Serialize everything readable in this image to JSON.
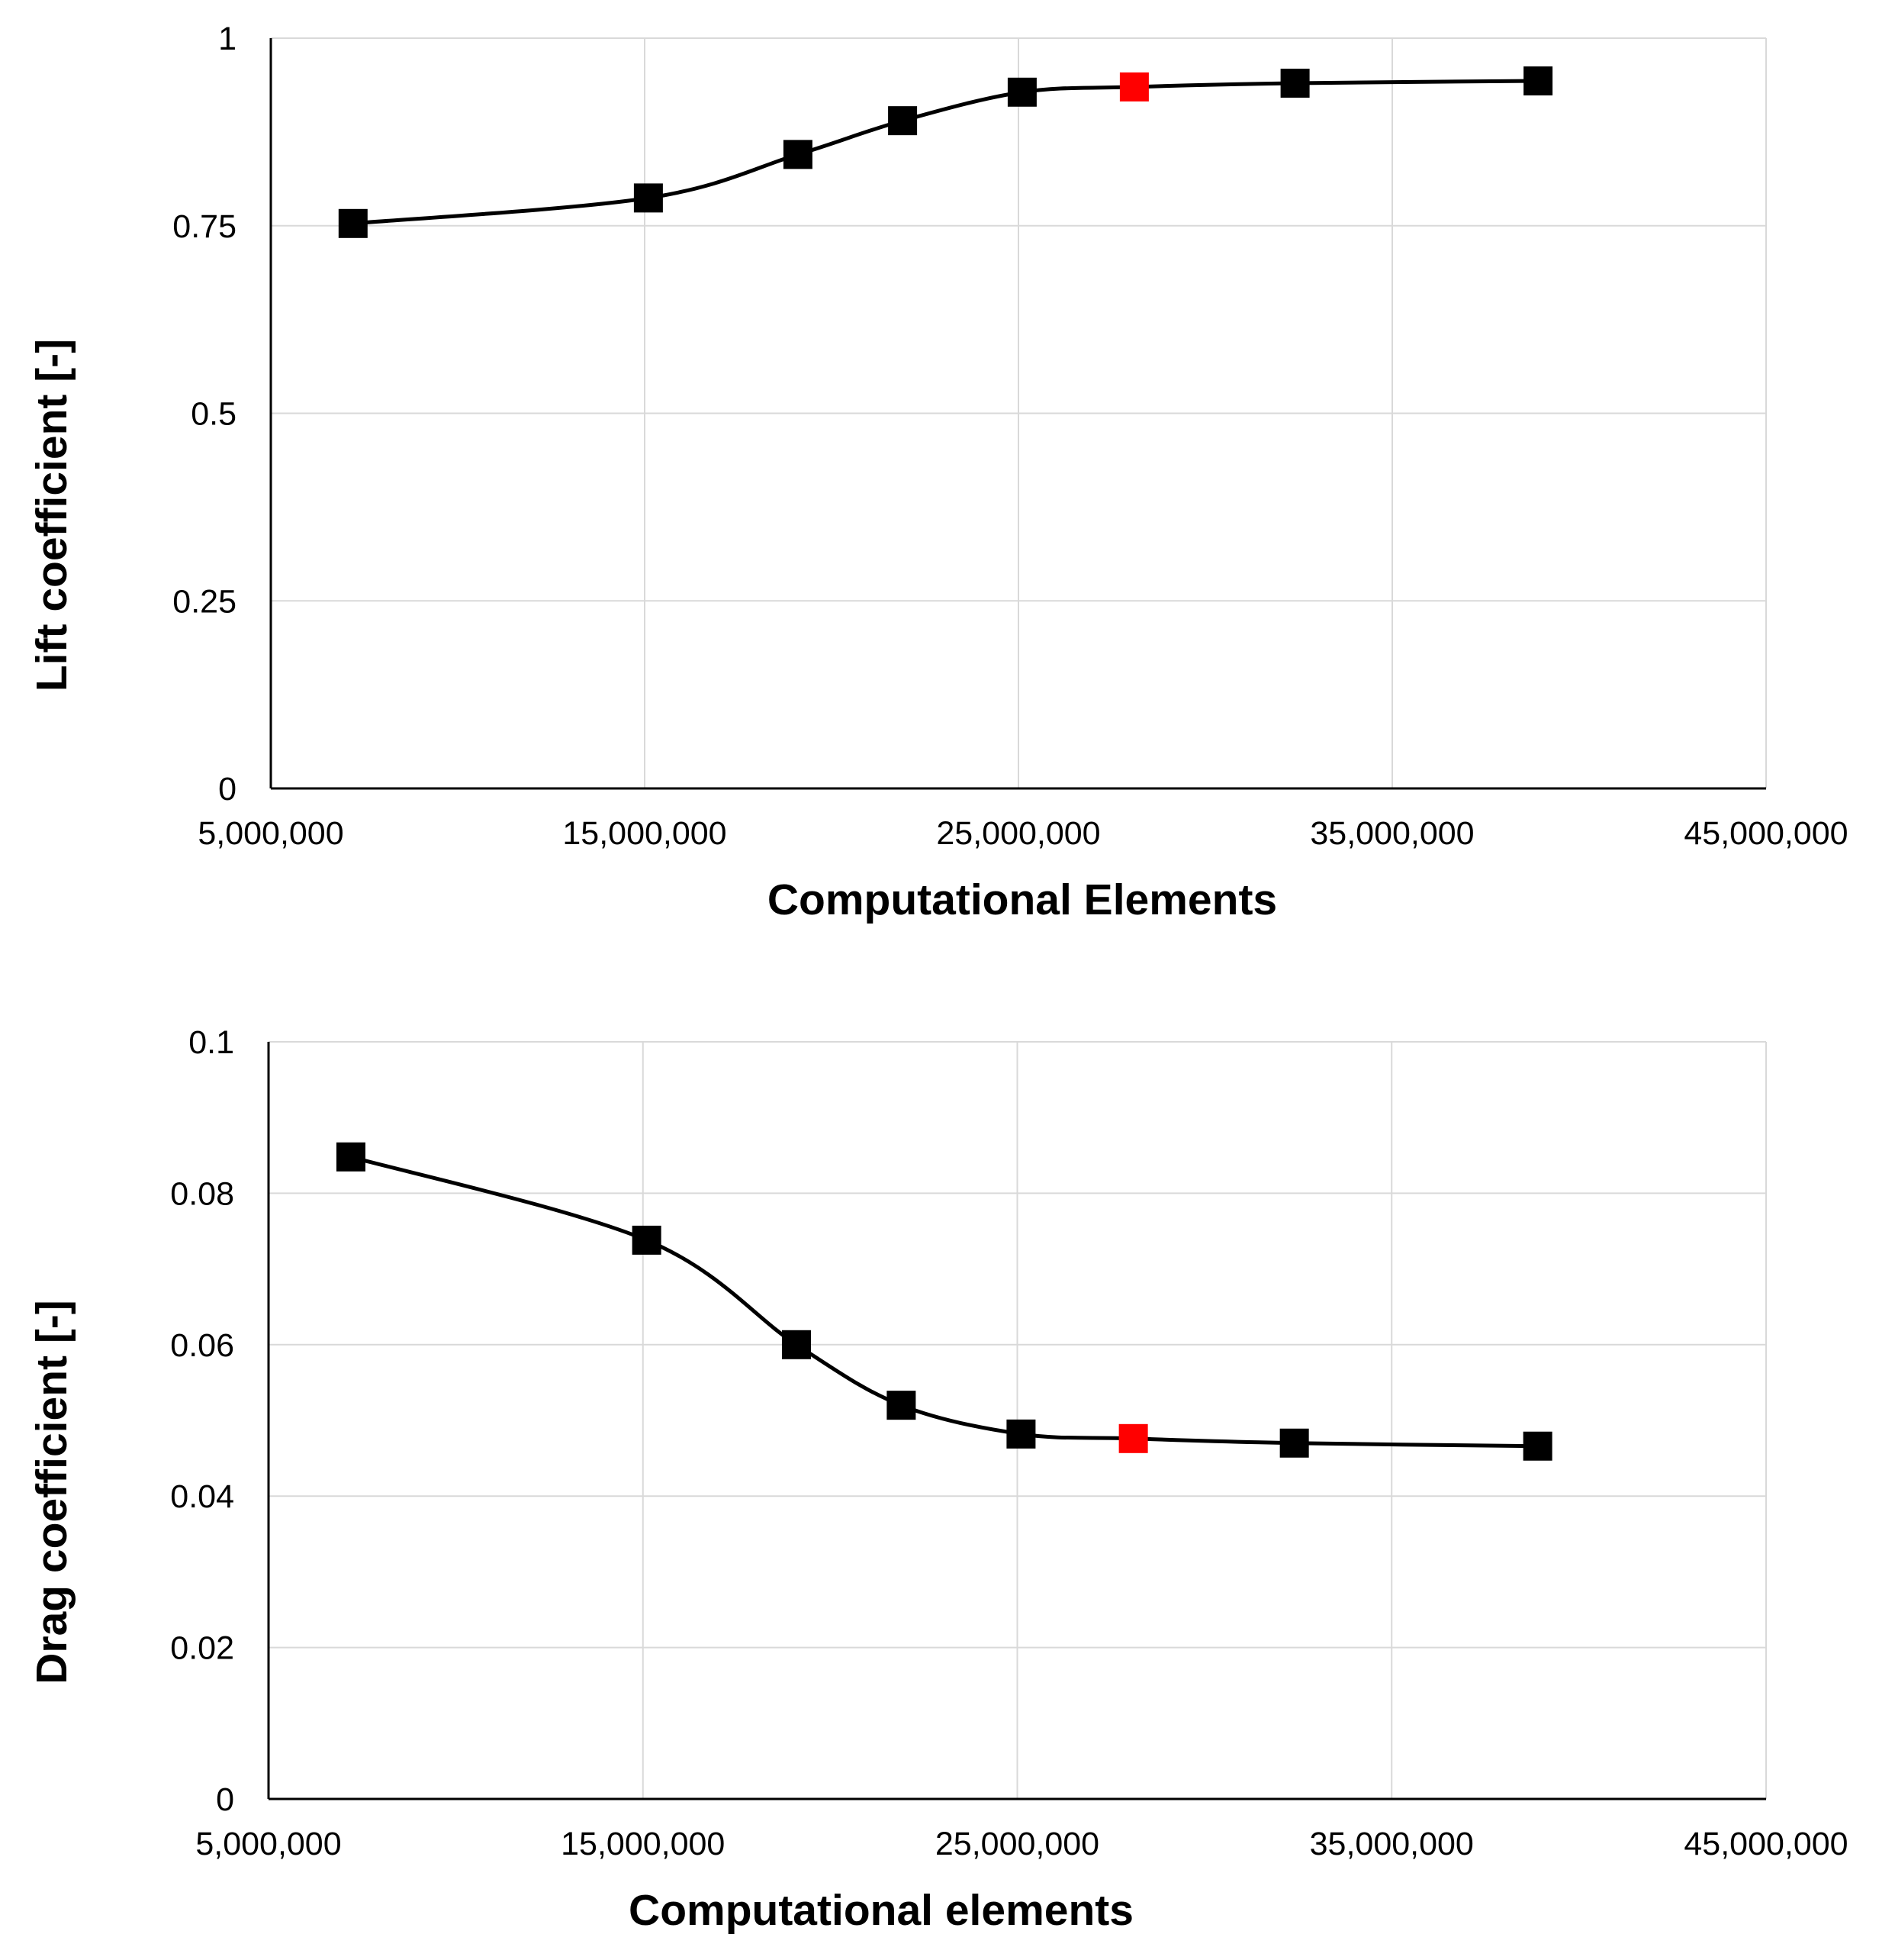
{
  "chart_data": [
    {
      "type": "line",
      "title": "",
      "xlabel": "Computational Elements",
      "ylabel": "Lift coefficient  [-]",
      "xlim": [
        5000000,
        45000000
      ],
      "ylim": [
        0,
        1
      ],
      "x_ticks": [
        {
          "value": 5000000,
          "label": "5,000,000"
        },
        {
          "value": 15000000,
          "label": "15,000,000"
        },
        {
          "value": 25000000,
          "label": "25,000,000"
        },
        {
          "value": 35000000,
          "label": "35,000,000"
        },
        {
          "value": 45000000,
          "label": "45,000,000"
        }
      ],
      "y_ticks": [
        {
          "value": 0,
          "label": "0"
        },
        {
          "value": 0.25,
          "label": "0.25"
        },
        {
          "value": 0.5,
          "label": "0.5"
        },
        {
          "value": 0.75,
          "label": "0.75"
        },
        {
          "value": 1,
          "label": "1"
        }
      ],
      "x_grid": [
        5000000,
        15000000,
        25000000,
        35000000,
        45000000
      ],
      "y_grid": [
        0.25,
        0.5,
        0.75,
        1
      ],
      "grid": true,
      "legend": "none",
      "line_color": "#000000",
      "marker_color": "#000000",
      "highlight_color": "#ff0000",
      "series": [
        {
          "name": "Lift coefficient",
          "x": [
            7200000,
            15100000,
            19100000,
            21900000,
            25100000,
            28100000,
            32400000,
            38900000
          ],
          "y": [
            0.753,
            0.787,
            0.845,
            0.89,
            0.928,
            0.935,
            0.94,
            0.943
          ],
          "highlight_index": 5
        }
      ]
    },
    {
      "type": "line",
      "title": "",
      "xlabel": "Computational elements",
      "ylabel": "Drag coefficient [-]",
      "xlim": [
        5000000,
        45000000
      ],
      "ylim": [
        0,
        0.1
      ],
      "x_ticks": [
        {
          "value": 5000000,
          "label": "5,000,000"
        },
        {
          "value": 15000000,
          "label": "15,000,000"
        },
        {
          "value": 25000000,
          "label": "25,000,000"
        },
        {
          "value": 35000000,
          "label": "35,000,000"
        },
        {
          "value": 45000000,
          "label": "45,000,000"
        }
      ],
      "y_ticks": [
        {
          "value": 0,
          "label": "0"
        },
        {
          "value": 0.02,
          "label": "0.02"
        },
        {
          "value": 0.04,
          "label": "0.04"
        },
        {
          "value": 0.06,
          "label": "0.06"
        },
        {
          "value": 0.08,
          "label": "0.08"
        },
        {
          "value": 0.1,
          "label": "0.1"
        }
      ],
      "x_grid": [
        5000000,
        15000000,
        25000000,
        35000000,
        45000000
      ],
      "y_grid": [
        0.02,
        0.04,
        0.06,
        0.08,
        0.1
      ],
      "grid": true,
      "legend": "none",
      "line_color": "#000000",
      "marker_color": "#000000",
      "highlight_color": "#ff0000",
      "series": [
        {
          "name": "Drag coefficient",
          "x": [
            7200000,
            15100000,
            19100000,
            21900000,
            25100000,
            28100000,
            32400000,
            38900000
          ],
          "y": [
            0.0848,
            0.0738,
            0.06,
            0.052,
            0.0482,
            0.0476,
            0.047,
            0.0466
          ],
          "highlight_index": 5
        }
      ]
    }
  ]
}
